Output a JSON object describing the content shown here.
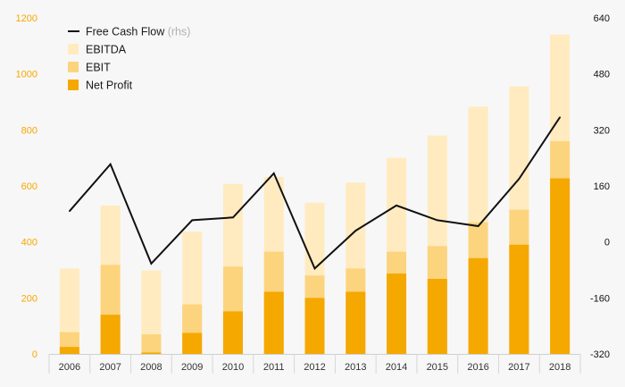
{
  "chart_data": {
    "type": "bar",
    "categories": [
      "2006",
      "2007",
      "2008",
      "2009",
      "2010",
      "2011",
      "2012",
      "2013",
      "2014",
      "2015",
      "2016",
      "2017",
      "2018"
    ],
    "series": [
      {
        "name": "EBITDA",
        "kind": "bar",
        "axis": "left",
        "color": "#ffebbf",
        "values": [
          305,
          530,
          298,
          437,
          607,
          632,
          540,
          612,
          700,
          780,
          883,
          955,
          1140
        ]
      },
      {
        "name": "EBIT",
        "kind": "bar",
        "axis": "left",
        "color": "#fcd47e",
        "values": [
          78,
          318,
          70,
          177,
          312,
          365,
          280,
          305,
          365,
          385,
          470,
          515,
          760
        ]
      },
      {
        "name": "Net Profit",
        "kind": "bar",
        "axis": "left",
        "color": "#f5a800",
        "values": [
          25,
          140,
          5,
          75,
          152,
          222,
          200,
          222,
          287,
          268,
          342,
          390,
          627
        ]
      },
      {
        "name": "Free Cash Flow",
        "kind": "line",
        "axis": "right",
        "color": "#111111",
        "values": [
          88,
          222,
          -62,
          62,
          70,
          196,
          -76,
          32,
          104,
          62,
          45,
          180,
          356
        ]
      }
    ],
    "y_left": {
      "ticks": [
        0,
        200,
        400,
        600,
        800,
        1000,
        1200
      ],
      "ylim": [
        0,
        1200
      ]
    },
    "y_right": {
      "ticks": [
        -320,
        -160,
        0,
        160,
        320,
        480,
        640
      ],
      "ylim": [
        -320,
        640
      ]
    },
    "legend": {
      "placement": "top-left",
      "items": [
        {
          "label": "Free Cash Flow",
          "note": "(rhs)",
          "symbol": "line",
          "color": "#111111"
        },
        {
          "label": "EBITDA",
          "symbol": "box",
          "color": "#ffebbf"
        },
        {
          "label": "EBIT",
          "symbol": "box",
          "color": "#fcd47e"
        },
        {
          "label": "Net Profit",
          "symbol": "box",
          "color": "#f5a800"
        }
      ]
    },
    "grid": false,
    "colors": {
      "left_axis_text": "#f5a800",
      "right_axis_text": "#111111",
      "background": "#f7f7f7"
    }
  }
}
